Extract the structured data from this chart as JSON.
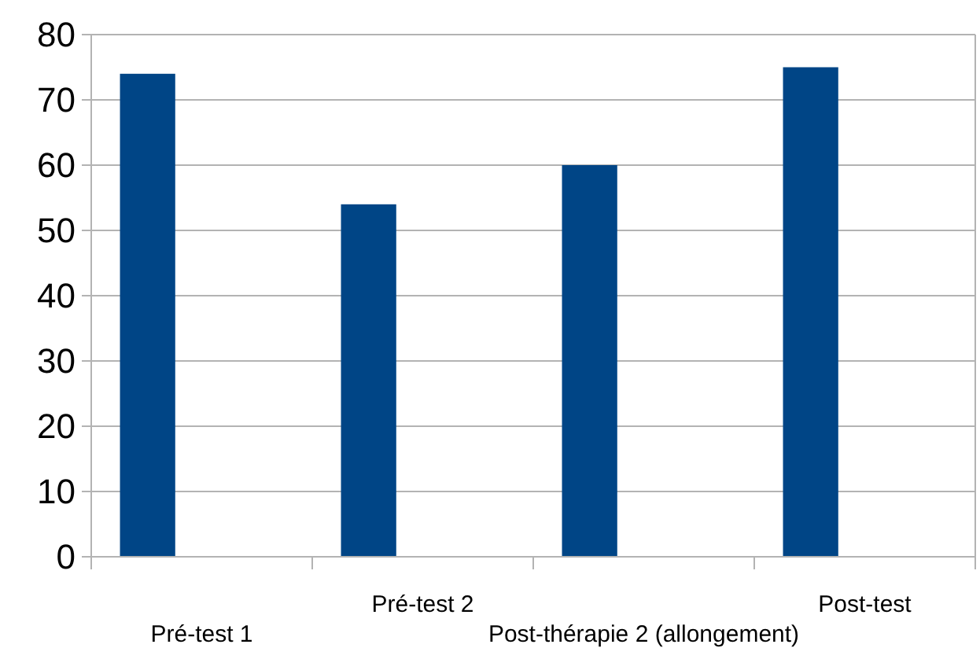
{
  "chart_data": {
    "type": "bar",
    "categories": [
      "Pré-test 1",
      "Pré-test 2",
      "Post-thérapie 2 (allongement)",
      "Post-test"
    ],
    "values": [
      74,
      54,
      60,
      75
    ],
    "color": "#004586",
    "ylim": [
      0,
      80
    ],
    "yticks": [
      0,
      10,
      20,
      30,
      40,
      50,
      60,
      70,
      80
    ],
    "grid": "y"
  }
}
